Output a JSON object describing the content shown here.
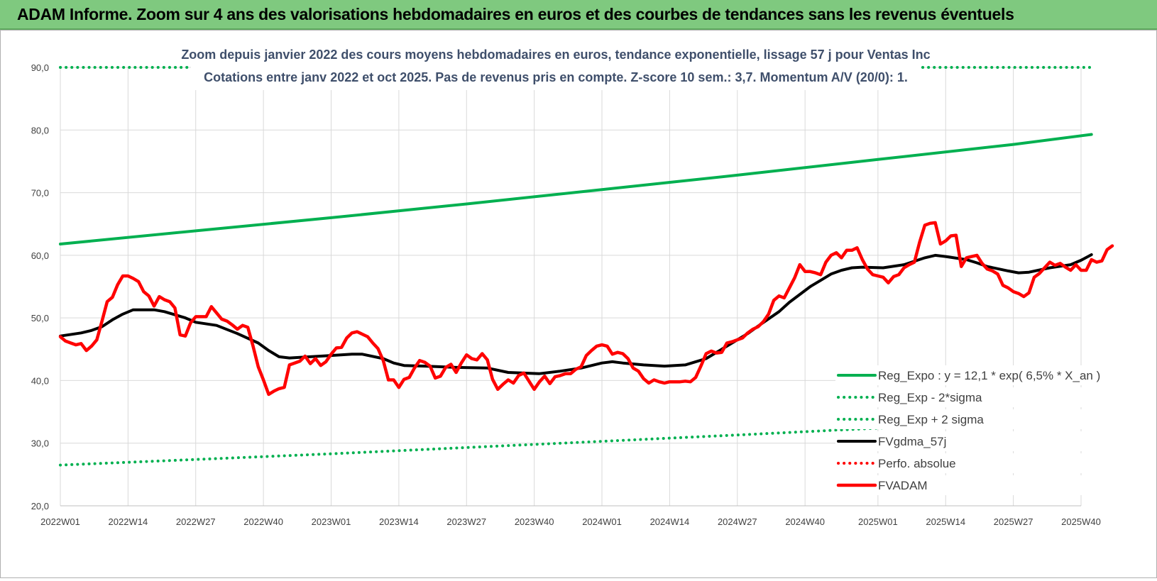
{
  "header": {
    "title": "ADAM Informe. Zoom sur 4 ans des valorisations hebdomadaires en euros et des courbes de tendances sans les revenus éventuels"
  },
  "chart_data": {
    "type": "line",
    "title": "Zoom depuis janvier 2022 des cours moyens hebdomadaires en euros, tendance exponentielle, lissage 57 j pour Ventas Inc",
    "subtitle": "Cotations entre janv 2022 et oct 2025. Pas de revenus pris en compte. Z-score 10 sem.: 3,7. Momentum A/V (20/0): 1.",
    "xlabel": "",
    "ylabel": "",
    "ylim": [
      20,
      90
    ],
    "xlim": [
      0,
      196
    ],
    "y_ticks": [
      "20,0",
      "30,0",
      "40,0",
      "50,0",
      "60,0",
      "70,0",
      "80,0",
      "90,0"
    ],
    "x_ticks": [
      {
        "x": 0,
        "label": "2022W01"
      },
      {
        "x": 13,
        "label": "2022W14"
      },
      {
        "x": 26,
        "label": "2022W27"
      },
      {
        "x": 39,
        "label": "2022W40"
      },
      {
        "x": 52,
        "label": "2023W01"
      },
      {
        "x": 65,
        "label": "2023W14"
      },
      {
        "x": 78,
        "label": "2023W27"
      },
      {
        "x": 91,
        "label": "2023W40"
      },
      {
        "x": 104,
        "label": "2024W01"
      },
      {
        "x": 117,
        "label": "2024W14"
      },
      {
        "x": 130,
        "label": "2024W27"
      },
      {
        "x": 143,
        "label": "2024W40"
      },
      {
        "x": 157,
        "label": "2025W01"
      },
      {
        "x": 170,
        "label": "2025W14"
      },
      {
        "x": 183,
        "label": "2025W27"
      },
      {
        "x": 196,
        "label": "2025W40"
      }
    ],
    "grid": true,
    "legend_position": "bottom-right",
    "series": [
      {
        "name": "Reg_Expo : y = 12,1 * exp( 6,5% * X_an )",
        "color": "#00b050",
        "style": "solid",
        "points": [
          [
            0,
            61.8
          ],
          [
            26,
            63.9
          ],
          [
            52,
            66.0
          ],
          [
            78,
            68.2
          ],
          [
            104,
            70.5
          ],
          [
            130,
            72.8
          ],
          [
            157,
            75.3
          ],
          [
            183,
            77.7
          ],
          [
            198,
            79.3
          ]
        ]
      },
      {
        "name": "Reg_Exp - 2*sigma",
        "color": "#00b050",
        "style": "dotted",
        "points": [
          [
            0,
            26.5
          ],
          [
            26,
            27.4
          ],
          [
            52,
            28.3
          ],
          [
            78,
            29.3
          ],
          [
            104,
            30.3
          ],
          [
            130,
            31.3
          ],
          [
            157,
            32.4
          ],
          [
            183,
            33.4
          ],
          [
            198,
            34.0
          ]
        ]
      },
      {
        "name": "Reg_Exp + 2 sigma",
        "color": "#00b050",
        "style": "dotted",
        "points": [
          [
            0,
            90
          ],
          [
            198,
            90
          ]
        ]
      },
      {
        "name": "FVgdma_57j",
        "color": "#000000",
        "style": "solid",
        "points": [
          [
            0,
            47.1
          ],
          [
            4,
            47.6
          ],
          [
            6,
            48.0
          ],
          [
            8,
            48.6
          ],
          [
            10,
            49.7
          ],
          [
            12,
            50.6
          ],
          [
            14,
            51.3
          ],
          [
            18,
            51.3
          ],
          [
            20,
            51.0
          ],
          [
            24,
            50.0
          ],
          [
            26,
            49.3
          ],
          [
            30,
            48.8
          ],
          [
            34,
            47.5
          ],
          [
            38,
            46.0
          ],
          [
            40,
            44.8
          ],
          [
            42,
            43.8
          ],
          [
            44,
            43.6
          ],
          [
            48,
            43.8
          ],
          [
            52,
            44.0
          ],
          [
            56,
            44.2
          ],
          [
            58,
            44.2
          ],
          [
            62,
            43.5
          ],
          [
            64,
            42.8
          ],
          [
            66,
            42.4
          ],
          [
            70,
            42.3
          ],
          [
            76,
            42.1
          ],
          [
            82,
            42.0
          ],
          [
            86,
            41.3
          ],
          [
            92,
            41.1
          ],
          [
            96,
            41.5
          ],
          [
            100,
            42.0
          ],
          [
            104,
            42.8
          ],
          [
            106,
            43.0
          ],
          [
            108,
            42.8
          ],
          [
            112,
            42.5
          ],
          [
            116,
            42.3
          ],
          [
            120,
            42.5
          ],
          [
            124,
            43.5
          ],
          [
            128,
            45.5
          ],
          [
            132,
            47.5
          ],
          [
            134,
            48.7
          ],
          [
            138,
            51.0
          ],
          [
            140,
            52.5
          ],
          [
            144,
            55.0
          ],
          [
            146,
            56.0
          ],
          [
            148,
            57.0
          ],
          [
            150,
            57.6
          ],
          [
            152,
            58.0
          ],
          [
            154,
            58.1
          ],
          [
            158,
            58.0
          ],
          [
            162,
            58.5
          ],
          [
            166,
            59.6
          ],
          [
            168,
            60.0
          ],
          [
            170,
            59.8
          ],
          [
            174,
            59.3
          ],
          [
            176,
            58.8
          ],
          [
            178,
            58.2
          ],
          [
            182,
            57.5
          ],
          [
            184,
            57.2
          ],
          [
            186,
            57.3
          ],
          [
            190,
            58.0
          ],
          [
            194,
            58.5
          ],
          [
            196,
            59.2
          ],
          [
            198,
            60.1
          ]
        ]
      },
      {
        "name": "Perfo. absolue",
        "color": "#ff0000",
        "style": "dotted",
        "points": []
      },
      {
        "name": "FVADAM",
        "color": "#ff0000",
        "style": "solid",
        "points": [
          [
            0,
            47.0
          ],
          [
            1,
            46.3
          ],
          [
            2,
            46.0
          ],
          [
            3,
            45.7
          ],
          [
            4,
            45.9
          ],
          [
            5,
            44.8
          ],
          [
            6,
            45.5
          ],
          [
            7,
            46.5
          ],
          [
            8,
            49.5
          ],
          [
            9,
            52.6
          ],
          [
            10,
            53.3
          ],
          [
            11,
            55.3
          ],
          [
            12,
            56.7
          ],
          [
            13,
            56.7
          ],
          [
            14,
            56.3
          ],
          [
            15,
            55.8
          ],
          [
            16,
            54.2
          ],
          [
            17,
            53.5
          ],
          [
            18,
            51.9
          ],
          [
            19,
            53.4
          ],
          [
            20,
            52.9
          ],
          [
            21,
            52.6
          ],
          [
            22,
            51.6
          ],
          [
            23,
            47.3
          ],
          [
            24,
            47.1
          ],
          [
            25,
            49.2
          ],
          [
            26,
            50.2
          ],
          [
            27,
            50.2
          ],
          [
            28,
            50.2
          ],
          [
            29,
            51.8
          ],
          [
            30,
            50.8
          ],
          [
            31,
            49.8
          ],
          [
            32,
            49.5
          ],
          [
            33,
            48.9
          ],
          [
            34,
            48.2
          ],
          [
            35,
            48.8
          ],
          [
            36,
            48.5
          ],
          [
            37,
            45.5
          ],
          [
            38,
            42.2
          ],
          [
            39,
            40.1
          ],
          [
            40,
            37.8
          ],
          [
            41,
            38.3
          ],
          [
            42,
            38.7
          ],
          [
            43,
            38.9
          ],
          [
            44,
            42.5
          ],
          [
            45,
            42.8
          ],
          [
            46,
            43.1
          ],
          [
            47,
            43.9
          ],
          [
            48,
            42.7
          ],
          [
            49,
            43.5
          ],
          [
            50,
            42.4
          ],
          [
            51,
            43.0
          ],
          [
            52,
            44.2
          ],
          [
            53,
            45.2
          ],
          [
            54,
            45.3
          ],
          [
            55,
            46.8
          ],
          [
            56,
            47.6
          ],
          [
            57,
            47.8
          ],
          [
            58,
            47.4
          ],
          [
            59,
            47.0
          ],
          [
            60,
            46.0
          ],
          [
            61,
            45.1
          ],
          [
            62,
            43.2
          ],
          [
            63,
            40.1
          ],
          [
            64,
            40.1
          ],
          [
            65,
            38.9
          ],
          [
            66,
            40.2
          ],
          [
            67,
            40.5
          ],
          [
            68,
            42.0
          ],
          [
            69,
            43.2
          ],
          [
            70,
            42.9
          ],
          [
            71,
            42.3
          ],
          [
            72,
            40.4
          ],
          [
            73,
            40.7
          ],
          [
            74,
            42.1
          ],
          [
            75,
            42.6
          ],
          [
            76,
            41.3
          ],
          [
            77,
            42.8
          ],
          [
            78,
            44.1
          ],
          [
            79,
            43.5
          ],
          [
            80,
            43.3
          ],
          [
            81,
            44.3
          ],
          [
            82,
            43.3
          ],
          [
            83,
            40.2
          ],
          [
            84,
            38.6
          ],
          [
            85,
            39.4
          ],
          [
            86,
            40.1
          ],
          [
            87,
            39.6
          ],
          [
            88,
            40.8
          ],
          [
            89,
            41.2
          ],
          [
            90,
            39.9
          ],
          [
            91,
            38.6
          ],
          [
            92,
            39.8
          ],
          [
            93,
            40.7
          ],
          [
            94,
            39.5
          ],
          [
            95,
            40.6
          ],
          [
            96,
            40.8
          ],
          [
            97,
            41.1
          ],
          [
            98,
            41.1
          ],
          [
            99,
            41.8
          ],
          [
            100,
            42.2
          ],
          [
            101,
            44.0
          ],
          [
            102,
            44.8
          ],
          [
            103,
            45.5
          ],
          [
            104,
            45.7
          ],
          [
            105,
            45.5
          ],
          [
            106,
            44.2
          ],
          [
            107,
            44.5
          ],
          [
            108,
            44.3
          ],
          [
            109,
            43.5
          ],
          [
            110,
            42.0
          ],
          [
            111,
            41.5
          ],
          [
            112,
            40.3
          ],
          [
            113,
            39.6
          ],
          [
            114,
            40.1
          ],
          [
            115,
            39.8
          ],
          [
            116,
            39.6
          ],
          [
            117,
            39.8
          ],
          [
            118,
            39.8
          ],
          [
            119,
            39.8
          ],
          [
            120,
            39.9
          ],
          [
            121,
            39.8
          ],
          [
            122,
            40.5
          ],
          [
            123,
            42.3
          ],
          [
            124,
            44.3
          ],
          [
            125,
            44.7
          ],
          [
            126,
            44.4
          ],
          [
            127,
            44.5
          ],
          [
            128,
            46.0
          ],
          [
            129,
            46.2
          ],
          [
            130,
            46.5
          ],
          [
            131,
            46.8
          ],
          [
            132,
            47.6
          ],
          [
            133,
            48.2
          ],
          [
            134,
            48.6
          ],
          [
            135,
            49.4
          ],
          [
            136,
            50.6
          ],
          [
            137,
            52.8
          ],
          [
            138,
            53.5
          ],
          [
            139,
            53.2
          ],
          [
            140,
            54.8
          ],
          [
            141,
            56.4
          ],
          [
            142,
            58.5
          ],
          [
            143,
            57.4
          ],
          [
            144,
            57.4
          ],
          [
            145,
            57.2
          ],
          [
            146,
            56.9
          ],
          [
            147,
            58.9
          ],
          [
            148,
            60.0
          ],
          [
            149,
            60.4
          ],
          [
            150,
            59.6
          ],
          [
            151,
            60.8
          ],
          [
            152,
            60.8
          ],
          [
            153,
            61.2
          ],
          [
            154,
            59.3
          ],
          [
            155,
            57.8
          ],
          [
            156,
            56.9
          ],
          [
            157,
            56.7
          ],
          [
            158,
            56.5
          ],
          [
            159,
            55.6
          ],
          [
            160,
            56.6
          ],
          [
            161,
            56.9
          ],
          [
            162,
            58.0
          ],
          [
            163,
            58.5
          ],
          [
            164,
            58.9
          ],
          [
            165,
            62.1
          ],
          [
            166,
            64.8
          ],
          [
            167,
            65.1
          ],
          [
            168,
            65.2
          ],
          [
            169,
            61.8
          ],
          [
            170,
            62.3
          ],
          [
            171,
            63.1
          ],
          [
            172,
            63.2
          ],
          [
            173,
            58.2
          ],
          [
            174,
            59.6
          ],
          [
            175,
            59.8
          ],
          [
            176,
            60.0
          ],
          [
            177,
            58.7
          ],
          [
            178,
            57.8
          ],
          [
            179,
            57.5
          ],
          [
            180,
            57.0
          ],
          [
            181,
            55.2
          ],
          [
            182,
            54.8
          ],
          [
            183,
            54.2
          ],
          [
            184,
            53.9
          ],
          [
            185,
            53.4
          ],
          [
            186,
            54.0
          ],
          [
            187,
            56.5
          ],
          [
            188,
            57.1
          ],
          [
            189,
            58.0
          ],
          [
            190,
            58.9
          ],
          [
            191,
            58.4
          ],
          [
            192,
            58.7
          ],
          [
            193,
            58.1
          ],
          [
            194,
            57.6
          ],
          [
            195,
            58.5
          ],
          [
            196,
            57.6
          ],
          [
            197,
            57.6
          ],
          [
            198,
            59.3
          ],
          [
            199,
            58.9
          ],
          [
            200,
            59.1
          ],
          [
            201,
            60.9
          ],
          [
            202,
            61.5
          ]
        ]
      }
    ]
  }
}
